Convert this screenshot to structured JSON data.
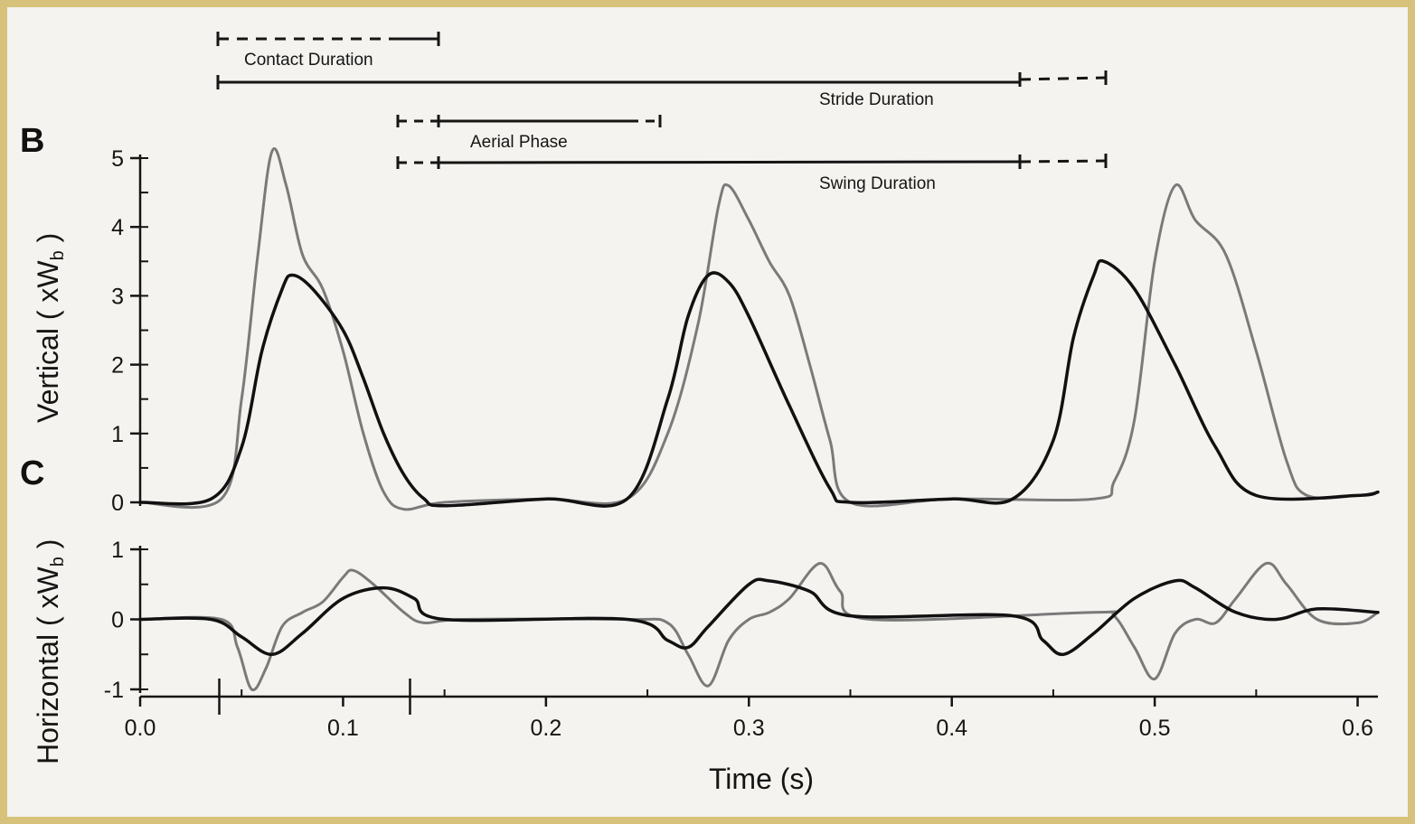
{
  "chart_data": [
    {
      "panel": "B",
      "type": "line",
      "ylabel_main": "Vertical ( xW",
      "ylabel_sub": "b",
      "ylabel_tail": " )",
      "ylim": [
        0,
        5
      ],
      "yticks": [
        0,
        1,
        2,
        3,
        4,
        5
      ],
      "series": [
        {
          "color": "#7a7a7a",
          "points": [
            [
              0.0,
              0.0
            ],
            [
              0.04,
              0.05
            ],
            [
              0.05,
              1.5
            ],
            [
              0.058,
              3.6
            ],
            [
              0.065,
              5.1
            ],
            [
              0.072,
              4.6
            ],
            [
              0.08,
              3.6
            ],
            [
              0.09,
              3.1
            ],
            [
              0.1,
              2.2
            ],
            [
              0.11,
              1.0
            ],
            [
              0.12,
              0.15
            ],
            [
              0.13,
              -0.1
            ],
            [
              0.15,
              0.0
            ],
            [
              0.2,
              0.05
            ],
            [
              0.24,
              0.05
            ],
            [
              0.26,
              1.0
            ],
            [
              0.275,
              2.6
            ],
            [
              0.285,
              4.3
            ],
            [
              0.29,
              4.6
            ],
            [
              0.3,
              4.1
            ],
            [
              0.31,
              3.5
            ],
            [
              0.32,
              3.0
            ],
            [
              0.33,
              2.0
            ],
            [
              0.34,
              0.9
            ],
            [
              0.35,
              0.0
            ],
            [
              0.4,
              0.05
            ],
            [
              0.47,
              0.05
            ],
            [
              0.48,
              0.3
            ],
            [
              0.49,
              1.2
            ],
            [
              0.5,
              3.5
            ],
            [
              0.51,
              4.6
            ],
            [
              0.52,
              4.1
            ],
            [
              0.535,
              3.6
            ],
            [
              0.55,
              2.2
            ],
            [
              0.565,
              0.6
            ],
            [
              0.575,
              0.1
            ],
            [
              0.6,
              0.1
            ],
            [
              0.61,
              0.15
            ]
          ]
        },
        {
          "color": "#111111",
          "points": [
            [
              0.0,
              0.0
            ],
            [
              0.035,
              0.05
            ],
            [
              0.05,
              0.8
            ],
            [
              0.06,
              2.2
            ],
            [
              0.07,
              3.1
            ],
            [
              0.075,
              3.3
            ],
            [
              0.085,
              3.1
            ],
            [
              0.1,
              2.5
            ],
            [
              0.11,
              1.8
            ],
            [
              0.12,
              1.0
            ],
            [
              0.13,
              0.4
            ],
            [
              0.14,
              0.05
            ],
            [
              0.15,
              -0.05
            ],
            [
              0.2,
              0.05
            ],
            [
              0.24,
              0.05
            ],
            [
              0.26,
              1.5
            ],
            [
              0.27,
              2.7
            ],
            [
              0.28,
              3.3
            ],
            [
              0.29,
              3.2
            ],
            [
              0.3,
              2.7
            ],
            [
              0.32,
              1.4
            ],
            [
              0.34,
              0.2
            ],
            [
              0.35,
              0.0
            ],
            [
              0.4,
              0.05
            ],
            [
              0.43,
              0.05
            ],
            [
              0.45,
              0.9
            ],
            [
              0.46,
              2.4
            ],
            [
              0.47,
              3.3
            ],
            [
              0.475,
              3.5
            ],
            [
              0.49,
              3.1
            ],
            [
              0.51,
              2.0
            ],
            [
              0.53,
              0.8
            ],
            [
              0.55,
              0.1
            ],
            [
              0.6,
              0.1
            ],
            [
              0.61,
              0.15
            ]
          ]
        }
      ]
    },
    {
      "panel": "C",
      "type": "line",
      "ylabel_main": "Horizontal ( xW",
      "ylabel_sub": "b",
      "ylabel_tail": " )",
      "xlabel": "Time (s)",
      "ylim": [
        -1,
        1
      ],
      "yticks": [
        -1,
        0,
        1
      ],
      "xlim": [
        0,
        0.61
      ],
      "xticks": [
        0.0,
        0.1,
        0.2,
        0.3,
        0.4,
        0.5,
        0.6
      ],
      "xtick_labels": [
        "0.0",
        "0.1",
        "0.2",
        "0.3",
        "0.4",
        "0.5",
        "0.6"
      ],
      "series": [
        {
          "color": "#7a7a7a",
          "points": [
            [
              0.0,
              0.0
            ],
            [
              0.04,
              0.0
            ],
            [
              0.048,
              -0.4
            ],
            [
              0.055,
              -1.0
            ],
            [
              0.062,
              -0.7
            ],
            [
              0.07,
              -0.1
            ],
            [
              0.08,
              0.1
            ],
            [
              0.09,
              0.25
            ],
            [
              0.1,
              0.6
            ],
            [
              0.105,
              0.7
            ],
            [
              0.115,
              0.5
            ],
            [
              0.13,
              0.1
            ],
            [
              0.14,
              -0.05
            ],
            [
              0.16,
              0.0
            ],
            [
              0.24,
              0.0
            ],
            [
              0.26,
              -0.05
            ],
            [
              0.27,
              -0.5
            ],
            [
              0.28,
              -0.95
            ],
            [
              0.29,
              -0.3
            ],
            [
              0.3,
              0.0
            ],
            [
              0.31,
              0.1
            ],
            [
              0.32,
              0.3
            ],
            [
              0.335,
              0.8
            ],
            [
              0.345,
              0.4
            ],
            [
              0.36,
              0.0
            ],
            [
              0.47,
              0.1
            ],
            [
              0.48,
              0.05
            ],
            [
              0.49,
              -0.4
            ],
            [
              0.5,
              -0.85
            ],
            [
              0.51,
              -0.2
            ],
            [
              0.52,
              0.0
            ],
            [
              0.53,
              -0.05
            ],
            [
              0.54,
              0.3
            ],
            [
              0.555,
              0.8
            ],
            [
              0.565,
              0.5
            ],
            [
              0.58,
              0.0
            ],
            [
              0.6,
              -0.05
            ],
            [
              0.61,
              0.1
            ]
          ]
        },
        {
          "color": "#111111",
          "points": [
            [
              0.0,
              0.0
            ],
            [
              0.035,
              0.0
            ],
            [
              0.05,
              -0.25
            ],
            [
              0.065,
              -0.5
            ],
            [
              0.08,
              -0.2
            ],
            [
              0.1,
              0.3
            ],
            [
              0.12,
              0.45
            ],
            [
              0.135,
              0.3
            ],
            [
              0.15,
              0.0
            ],
            [
              0.24,
              0.0
            ],
            [
              0.26,
              -0.3
            ],
            [
              0.27,
              -0.4
            ],
            [
              0.28,
              -0.1
            ],
            [
              0.3,
              0.5
            ],
            [
              0.31,
              0.55
            ],
            [
              0.33,
              0.4
            ],
            [
              0.35,
              0.05
            ],
            [
              0.43,
              0.05
            ],
            [
              0.445,
              -0.3
            ],
            [
              0.455,
              -0.5
            ],
            [
              0.47,
              -0.2
            ],
            [
              0.49,
              0.3
            ],
            [
              0.51,
              0.55
            ],
            [
              0.52,
              0.45
            ],
            [
              0.54,
              0.1
            ],
            [
              0.56,
              0.0
            ],
            [
              0.58,
              0.15
            ],
            [
              0.61,
              0.1
            ]
          ]
        }
      ]
    }
  ],
  "annotations": {
    "contact": "Contact Duration",
    "stride": "Stride Duration",
    "aerial": "Aerial Phase",
    "swing": "Swing Duration"
  }
}
